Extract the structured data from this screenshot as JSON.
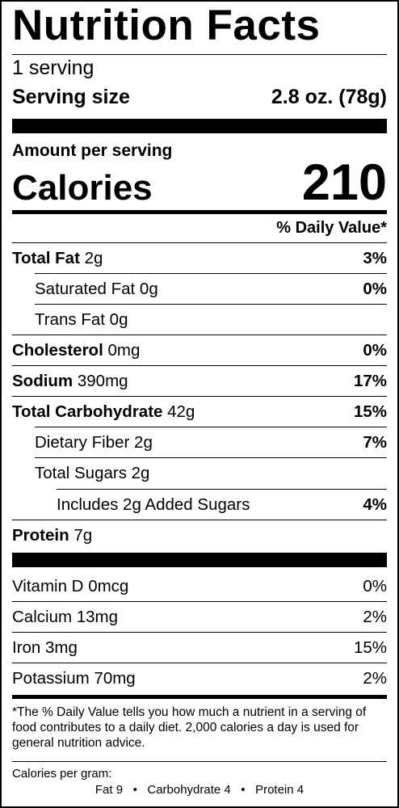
{
  "title": "Nutrition Facts",
  "servings": "1 serving",
  "serving_size_label": "Serving size",
  "serving_size_value": "2.8 oz. (78g)",
  "amount_per_serving": "Amount per serving",
  "calories_label": "Calories",
  "calories_value": "210",
  "dv_header": "% Daily Value*",
  "nutrients": [
    {
      "name": "Total Fat",
      "amount": "2g",
      "dv": "3%"
    },
    {
      "name": "Saturated Fat",
      "amount": "0g",
      "dv": "0%"
    },
    {
      "name": "Trans Fat",
      "amount": "0g",
      "dv": ""
    },
    {
      "name": "Cholesterol",
      "amount": "0mg",
      "dv": "0%"
    },
    {
      "name": "Sodium",
      "amount": "390mg",
      "dv": "17%"
    },
    {
      "name": "Total Carbohydrate",
      "amount": "42g",
      "dv": "15%"
    },
    {
      "name": "Dietary Fiber",
      "amount": "2g",
      "dv": "7%"
    },
    {
      "name": "Total Sugars",
      "amount": "2g",
      "dv": ""
    },
    {
      "name": "Includes 2g Added Sugars",
      "amount": "",
      "dv": "4%"
    },
    {
      "name": "Protein",
      "amount": "7g",
      "dv": ""
    }
  ],
  "vitamins": [
    {
      "name": "Vitamin D",
      "amount": "0mcg",
      "dv": "0%"
    },
    {
      "name": "Calcium",
      "amount": "13mg",
      "dv": "2%"
    },
    {
      "name": "Iron",
      "amount": "3mg",
      "dv": "15%"
    },
    {
      "name": "Potassium",
      "amount": "70mg",
      "dv": "2%"
    }
  ],
  "footnote": "*The % Daily Value tells you how much a nutrient in a serving of food contributes to a daily diet. 2,000 calories a day is used for general nutrition advice.",
  "calories_per_gram_label": "Calories per gram:",
  "calories_per_gram": {
    "fat": "Fat 9",
    "carbohydrate": "Carbohydrate 4",
    "protein": "Protein 4",
    "separator": "•"
  }
}
